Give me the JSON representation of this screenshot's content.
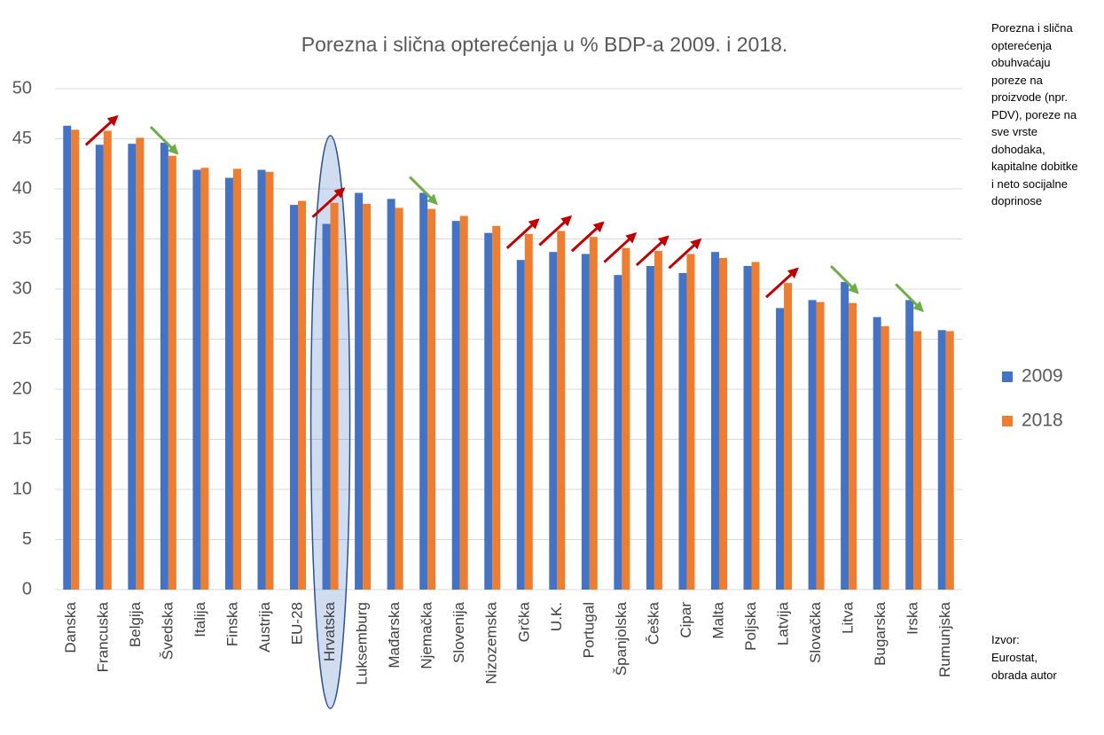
{
  "chart_data": {
    "type": "bar",
    "title": "Porezna i slična opterećenja u % BDP-a 2009. i 2018.",
    "categories": [
      "Danska",
      "Francuska",
      "Belgija",
      "Švedska",
      "Italija",
      "Finska",
      "Austrija",
      "EU-28",
      "Hrvatska",
      "Luksemburg",
      "Mađarska",
      "Njemačka",
      "Slovenija",
      "Nizozemska",
      "Grčka",
      "U.K.",
      "Portugal",
      "Španjolska",
      "Češka",
      "Cipar",
      "Malta",
      "Poljska",
      "Latvija",
      "Slovačka",
      "Litva",
      "Bugarska",
      "Irska",
      "Rumunjska"
    ],
    "series": [
      {
        "name": "2009",
        "color": "#4472c4",
        "values": [
          46.3,
          44.4,
          44.5,
          44.6,
          41.9,
          41.1,
          41.9,
          38.4,
          36.5,
          39.6,
          39.0,
          39.6,
          36.8,
          35.6,
          32.9,
          33.7,
          33.5,
          31.4,
          32.3,
          31.6,
          33.7,
          32.3,
          28.1,
          28.9,
          30.7,
          27.2,
          28.9,
          25.9
        ]
      },
      {
        "name": "2018",
        "color": "#ed7d31",
        "values": [
          45.9,
          45.8,
          45.1,
          43.3,
          42.1,
          42.0,
          41.7,
          38.8,
          38.6,
          38.5,
          38.1,
          38.0,
          37.3,
          36.3,
          35.5,
          35.8,
          35.2,
          34.1,
          33.8,
          33.5,
          33.1,
          32.7,
          30.6,
          28.7,
          28.6,
          26.3,
          25.8,
          25.8
        ]
      }
    ],
    "ylim": [
      0,
      50
    ],
    "yticks": [
      0,
      5,
      10,
      15,
      20,
      25,
      30,
      35,
      40,
      45,
      50
    ],
    "grid": true,
    "note": "Porezna i slična opterećenja obuhvaćaju poreze na proizvode (npr. PDV), poreze na sve vrste dohodaka, kapitalne dobitke i neto socijalne doprinose",
    "source": "Izvor: Eurostat, obrada autor"
  }
}
